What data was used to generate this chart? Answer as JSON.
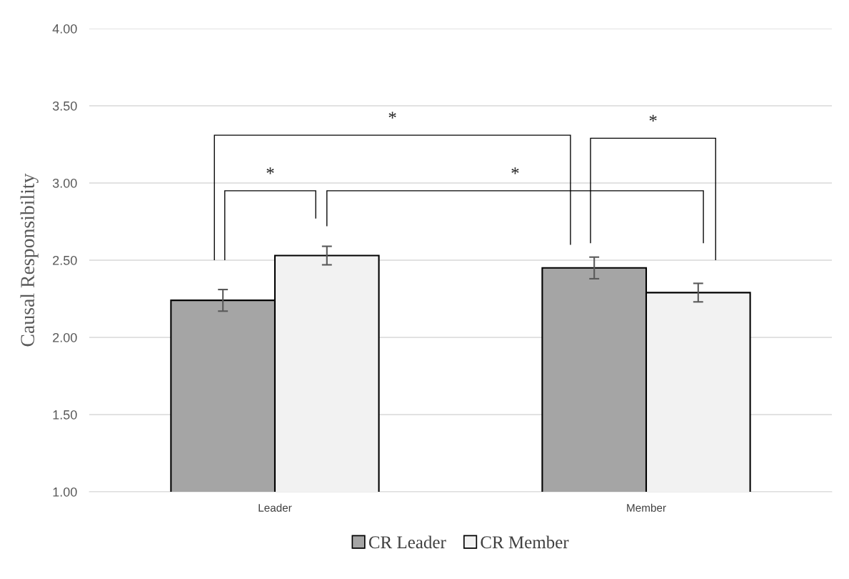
{
  "chart_data": {
    "type": "bar",
    "ylabel": "Causal Responsibility",
    "categories": [
      "Leader",
      "Member"
    ],
    "series": [
      {
        "name": "CR Leader",
        "color": "#a5a5a5",
        "values": [
          2.24,
          2.45
        ],
        "errors": [
          0.07,
          0.07
        ]
      },
      {
        "name": "CR Member",
        "color": "#f2f2f2",
        "values": [
          2.53,
          2.29
        ],
        "errors": [
          0.06,
          0.06
        ]
      }
    ],
    "ylim": [
      1.0,
      4.0
    ],
    "yticks": [
      {
        "value": 1.0,
        "label": "1.00"
      },
      {
        "value": 1.5,
        "label": "1.50"
      },
      {
        "value": 2.0,
        "label": "2.00"
      },
      {
        "value": 2.5,
        "label": "2.50"
      },
      {
        "value": 3.0,
        "label": "3.00"
      },
      {
        "value": 3.5,
        "label": "3.50"
      },
      {
        "value": 4.0,
        "label": "4.00"
      }
    ],
    "grid": "y",
    "legend": "bottom",
    "annotations": [
      "*",
      "*",
      "*",
      "*"
    ]
  }
}
